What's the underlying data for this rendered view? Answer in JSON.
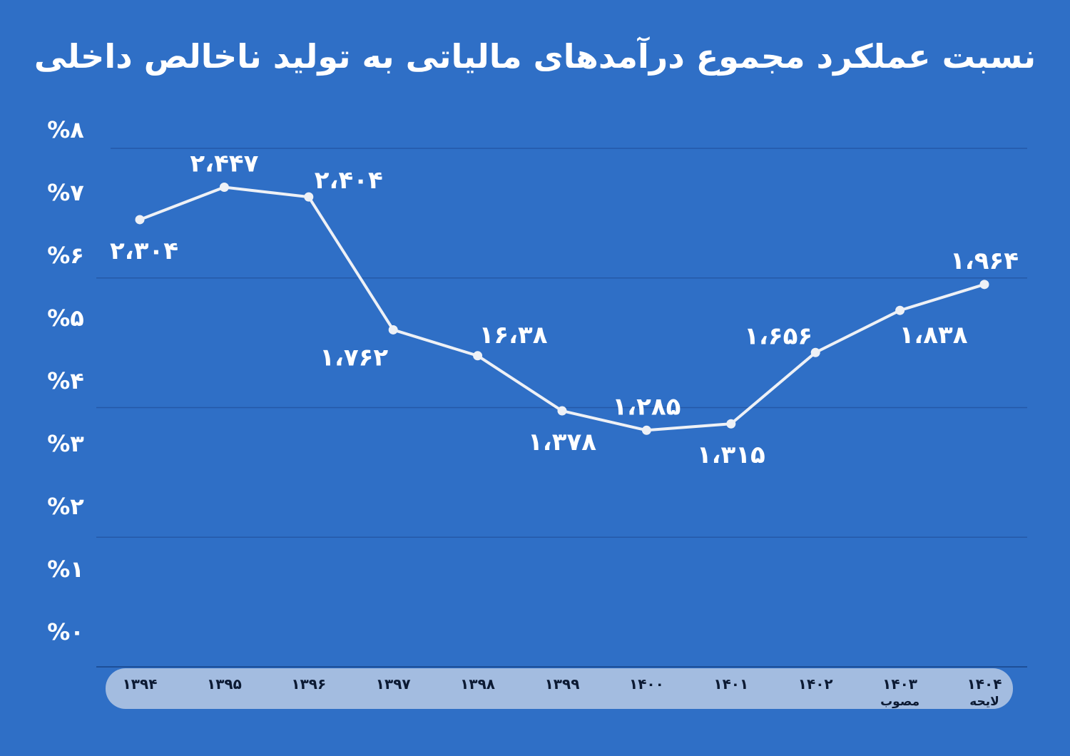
{
  "chart_data": {
    "type": "line",
    "title": "نسبت عملکرد مجموع درآمدهای مالیاتی به تولید ناخالص داخلی",
    "categories": [
      "۱۳۹۴",
      "۱۳۹۵",
      "۱۳۹۶",
      "۱۳۹۷",
      "۱۳۹۸",
      "۱۳۹۹",
      "۱۴۰۰",
      "۱۴۰۱",
      "۱۴۰۲",
      "۱۴۰۳",
      "۱۴۰۴"
    ],
    "category_sublabels": [
      "",
      "",
      "",
      "",
      "",
      "",
      "",
      "",
      "",
      "مصوب",
      "لایحه"
    ],
    "values": [
      6.9,
      7.4,
      7.25,
      5.2,
      4.8,
      3.95,
      3.65,
      3.75,
      4.85,
      5.5,
      5.9
    ],
    "data_labels": [
      "۲،۳۰۴",
      "۲،۴۴۷",
      "۲،۴۰۴",
      "۱،۷۶۲",
      "۱۶،۳۸",
      "۱،۳۷۸",
      "۱،۲۸۵",
      "۱،۳۱۵",
      "۱،۶۵۶",
      "۱،۸۳۸",
      "۱،۹۶۴"
    ],
    "label_position": [
      "below",
      "above",
      "right",
      "below",
      "above",
      "below",
      "above",
      "below",
      "above",
      "below",
      "above"
    ],
    "yticks": [
      "%۰",
      "%۱",
      "%۲",
      "%۳",
      "%۴",
      "%۵",
      "%۶",
      "%۷",
      "%۸"
    ],
    "ylim": [
      0,
      8
    ],
    "grid_values": [
      0,
      2,
      4,
      6,
      8
    ],
    "xlabel": "",
    "ylabel": "",
    "colors": {
      "background": "#2f6fc6",
      "line": "#eef1f6",
      "grid": "#2459a8",
      "axis_band": "#a3bce0",
      "axis_text": "#0c1a33",
      "text": "#ffffff"
    }
  }
}
